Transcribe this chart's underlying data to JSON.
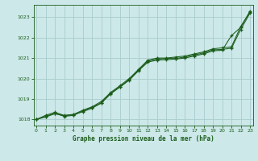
{
  "title": "Graphe pression niveau de la mer (hPa)",
  "bg_color": "#cce8e8",
  "grid_color": "#aacccc",
  "line_color": "#1a5c1a",
  "x_ticks": [
    0,
    1,
    2,
    3,
    4,
    5,
    6,
    7,
    8,
    9,
    10,
    11,
    12,
    13,
    14,
    15,
    16,
    17,
    18,
    19,
    20,
    21,
    22,
    23
  ],
  "y_ticks": [
    1018,
    1019,
    1020,
    1021,
    1022,
    1023
  ],
  "ylim": [
    1017.7,
    1023.6
  ],
  "xlim": [
    -0.3,
    23.3
  ],
  "line1": [
    1018.0,
    1018.2,
    1018.35,
    1018.2,
    1018.25,
    1018.45,
    1018.62,
    1018.88,
    1019.32,
    1019.65,
    1020.0,
    1020.45,
    1020.9,
    1021.0,
    1021.0,
    1021.05,
    1021.1,
    1021.2,
    1021.3,
    1021.45,
    1021.5,
    1021.55,
    1022.55,
    1023.25
  ],
  "line2": [
    1018.0,
    1018.15,
    1018.3,
    1018.15,
    1018.2,
    1018.42,
    1018.58,
    1018.82,
    1019.28,
    1019.6,
    1019.95,
    1020.4,
    1020.85,
    1020.95,
    1020.98,
    1020.98,
    1021.05,
    1021.15,
    1021.25,
    1021.4,
    1021.42,
    1021.48,
    1022.4,
    1023.2
  ],
  "line3": [
    1018.0,
    1018.12,
    1018.28,
    1018.18,
    1018.22,
    1018.38,
    1018.55,
    1018.8,
    1019.25,
    1019.58,
    1019.92,
    1020.38,
    1020.8,
    1020.9,
    1020.92,
    1020.95,
    1021.0,
    1021.1,
    1021.2,
    1021.35,
    1021.38,
    1022.1,
    1022.5,
    1023.3
  ]
}
